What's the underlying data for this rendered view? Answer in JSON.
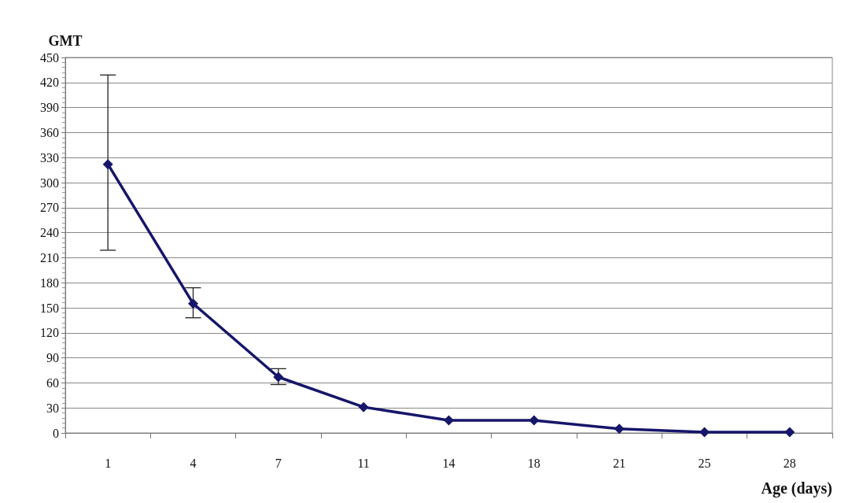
{
  "chart_data": {
    "type": "line",
    "xlabel": "Age (days)",
    "ylabel": "GMT",
    "categories": [
      "1",
      "4",
      "7",
      "11",
      "14",
      "18",
      "21",
      "25",
      "28"
    ],
    "series": [
      {
        "color": "#16166a",
        "values": [
          322,
          155,
          67,
          31,
          15,
          15,
          5,
          1,
          1
        ],
        "errors": [
          [
            219,
            429
          ],
          [
            138,
            174
          ],
          [
            58,
            77
          ],
          null,
          null,
          null,
          null,
          null,
          null
        ]
      }
    ],
    "ylim": [
      0,
      450
    ],
    "yticks": [
      0,
      30,
      60,
      90,
      120,
      150,
      180,
      210,
      240,
      270,
      300,
      330,
      360,
      390,
      420,
      450
    ],
    "grid": "y",
    "marker": "diamond",
    "line_style": "solid"
  }
}
